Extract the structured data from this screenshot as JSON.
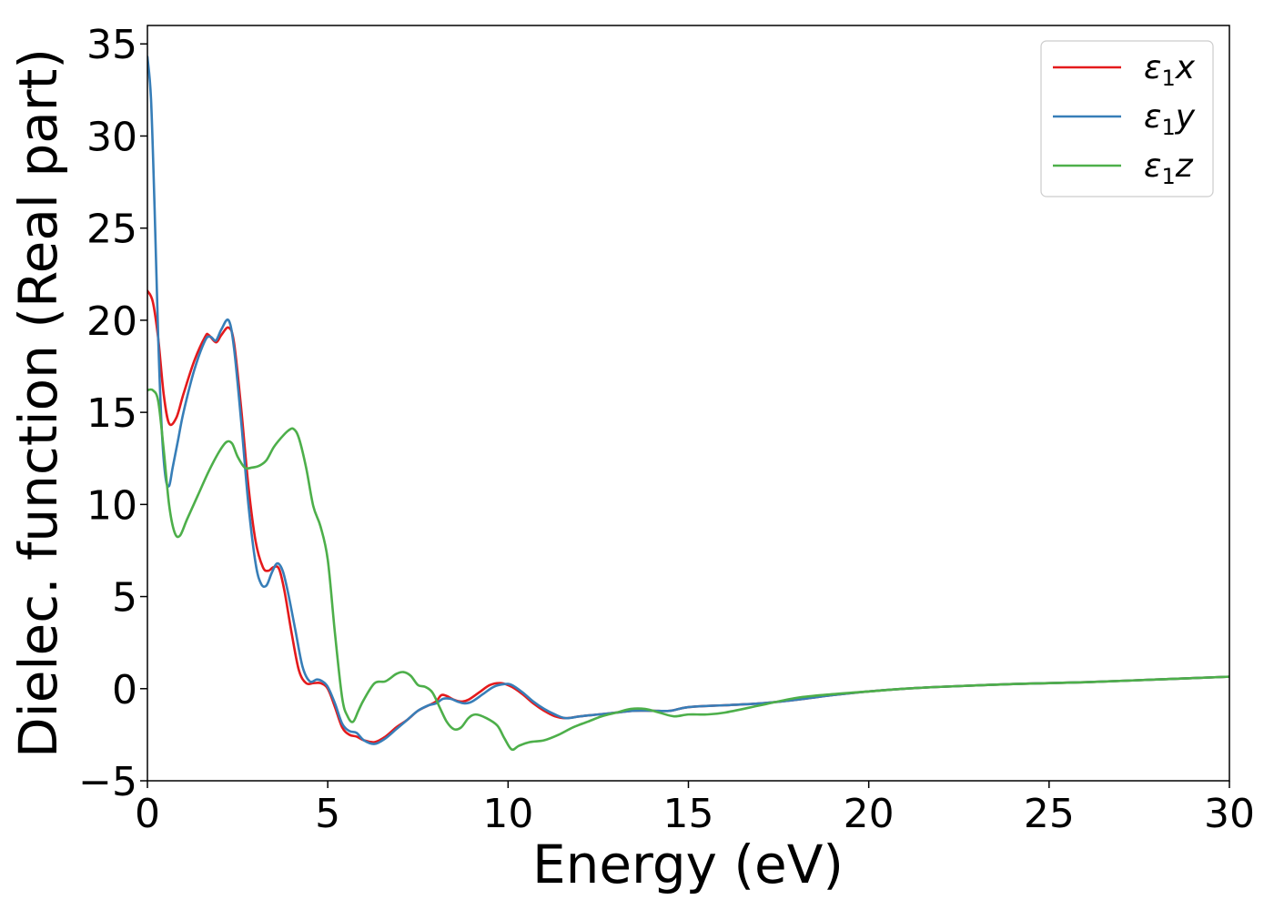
{
  "chart_data": {
    "type": "line",
    "title": "",
    "xlabel": "Energy (eV)",
    "ylabel": "Dielec. function (Real part)",
    "xlim": [
      0,
      30
    ],
    "ylim": [
      -5,
      36
    ],
    "xticks": [
      0,
      5,
      10,
      15,
      20,
      25,
      30
    ],
    "xtick_labels": [
      "0",
      "5",
      "10",
      "15",
      "20",
      "25",
      "30"
    ],
    "yticks": [
      -5,
      0,
      5,
      10,
      15,
      20,
      25,
      30,
      35
    ],
    "ytick_labels": [
      "−5",
      "0",
      "5",
      "10",
      "15",
      "20",
      "25",
      "30",
      "35"
    ],
    "grid": false,
    "legend_position": "top-right",
    "series": [
      {
        "name": "ε₁x",
        "legend_main": "ε",
        "legend_sub": "1",
        "legend_var": "x",
        "color": "#e41a1c",
        "x": [
          0,
          0.15,
          0.3,
          0.45,
          0.6,
          0.8,
          1.0,
          1.3,
          1.6,
          1.7,
          1.9,
          2.05,
          2.25,
          2.4,
          2.6,
          2.8,
          3.0,
          3.2,
          3.35,
          3.5,
          3.65,
          3.8,
          4.0,
          4.2,
          4.4,
          4.6,
          4.8,
          5.0,
          5.2,
          5.4,
          5.6,
          5.8,
          6.0,
          6.3,
          6.6,
          6.9,
          7.2,
          7.5,
          7.8,
          8.0,
          8.15,
          8.3,
          8.5,
          8.7,
          8.9,
          9.2,
          9.5,
          9.8,
          10.1,
          10.4,
          10.7,
          11.0,
          11.3,
          11.6,
          12.0,
          12.5,
          13.0,
          13.5,
          14.0,
          14.5,
          15.0,
          16.0,
          17.0,
          18.0,
          19.0,
          20.0,
          21.0,
          22.0,
          24.0,
          26.0,
          28.0,
          30.0
        ],
        "y": [
          21.6,
          21.0,
          19.0,
          16.0,
          14.4,
          14.7,
          16.0,
          17.8,
          19.1,
          19.2,
          18.8,
          19.2,
          19.6,
          18.8,
          15.2,
          11.0,
          8.0,
          6.6,
          6.4,
          6.6,
          6.5,
          5.3,
          3.0,
          1.0,
          0.3,
          0.3,
          0.3,
          0.0,
          -1.0,
          -2.1,
          -2.5,
          -2.6,
          -2.8,
          -2.9,
          -2.6,
          -2.1,
          -1.7,
          -1.2,
          -0.9,
          -0.7,
          -0.35,
          -0.4,
          -0.6,
          -0.7,
          -0.6,
          -0.2,
          0.2,
          0.3,
          0.1,
          -0.3,
          -0.8,
          -1.2,
          -1.5,
          -1.6,
          -1.5,
          -1.4,
          -1.3,
          -1.2,
          -1.2,
          -1.2,
          -1.0,
          -0.9,
          -0.8,
          -0.6,
          -0.35,
          -0.15,
          0.0,
          0.1,
          0.25,
          0.35,
          0.5,
          0.65
        ]
      },
      {
        "name": "ε₁y",
        "legend_main": "ε",
        "legend_sub": "1",
        "legend_var": "y",
        "color": "#377eb8",
        "x": [
          0,
          0.1,
          0.2,
          0.3,
          0.4,
          0.5,
          0.6,
          0.7,
          0.85,
          1.0,
          1.3,
          1.6,
          1.75,
          1.9,
          2.05,
          2.25,
          2.4,
          2.6,
          2.8,
          3.0,
          3.15,
          3.3,
          3.45,
          3.6,
          3.75,
          3.9,
          4.1,
          4.3,
          4.5,
          4.7,
          4.85,
          5.0,
          5.2,
          5.4,
          5.6,
          5.8,
          6.0,
          6.3,
          6.6,
          6.9,
          7.2,
          7.5,
          7.8,
          8.0,
          8.2,
          8.4,
          8.6,
          8.8,
          9.0,
          9.3,
          9.6,
          9.9,
          10.1,
          10.4,
          10.7,
          11.0,
          11.3,
          11.6,
          12.0,
          12.5,
          13.0,
          13.5,
          14.0,
          14.5,
          15.0,
          16.0,
          17.0,
          18.0,
          19.0,
          20.0,
          21.0,
          22.0,
          24.0,
          26.0,
          28.0,
          30.0
        ],
        "y": [
          34.3,
          32.0,
          26.0,
          19.0,
          14.0,
          11.5,
          11.0,
          12.0,
          13.5,
          15.0,
          17.3,
          18.9,
          19.1,
          18.9,
          19.5,
          20.0,
          18.5,
          14.5,
          10.0,
          6.8,
          5.7,
          5.6,
          6.3,
          6.8,
          6.4,
          5.2,
          3.2,
          1.2,
          0.4,
          0.5,
          0.4,
          0.1,
          -0.8,
          -1.9,
          -2.3,
          -2.4,
          -2.8,
          -3.0,
          -2.7,
          -2.2,
          -1.7,
          -1.2,
          -0.9,
          -0.8,
          -0.55,
          -0.55,
          -0.7,
          -0.8,
          -0.7,
          -0.3,
          0.1,
          0.25,
          0.2,
          -0.2,
          -0.7,
          -1.1,
          -1.4,
          -1.6,
          -1.5,
          -1.4,
          -1.3,
          -1.2,
          -1.2,
          -1.2,
          -1.0,
          -0.9,
          -0.8,
          -0.6,
          -0.35,
          -0.15,
          0.0,
          0.1,
          0.25,
          0.35,
          0.5,
          0.65
        ]
      },
      {
        "name": "ε₁z",
        "legend_main": "ε",
        "legend_sub": "1",
        "legend_var": "z",
        "color": "#4daf4a",
        "x": [
          0,
          0.15,
          0.3,
          0.45,
          0.6,
          0.75,
          0.9,
          1.1,
          1.4,
          1.7,
          2.0,
          2.2,
          2.35,
          2.5,
          2.7,
          2.9,
          3.1,
          3.3,
          3.5,
          3.7,
          3.9,
          4.05,
          4.2,
          4.4,
          4.6,
          4.8,
          5.0,
          5.2,
          5.4,
          5.55,
          5.7,
          5.85,
          6.0,
          6.3,
          6.6,
          6.9,
          7.1,
          7.3,
          7.5,
          7.7,
          7.9,
          8.1,
          8.3,
          8.5,
          8.7,
          8.9,
          9.1,
          9.4,
          9.7,
          9.9,
          10.1,
          10.3,
          10.6,
          11.0,
          11.4,
          11.8,
          12.2,
          12.6,
          13.0,
          13.4,
          13.8,
          14.2,
          14.6,
          15.0,
          15.5,
          16.0,
          17.0,
          18.0,
          19.0,
          20.0,
          21.0,
          22.0,
          24.0,
          26.0,
          28.0,
          30.0
        ],
        "y": [
          16.2,
          16.2,
          15.6,
          13.0,
          10.0,
          8.5,
          8.3,
          9.2,
          10.5,
          11.8,
          12.9,
          13.4,
          13.3,
          12.6,
          12.0,
          12.0,
          12.1,
          12.4,
          13.1,
          13.6,
          14.0,
          14.1,
          13.6,
          12.0,
          9.9,
          8.8,
          7.0,
          3.0,
          -0.5,
          -1.5,
          -1.8,
          -1.2,
          -0.6,
          0.3,
          0.4,
          0.8,
          0.9,
          0.7,
          0.2,
          0.1,
          -0.2,
          -1.0,
          -1.8,
          -2.2,
          -2.1,
          -1.6,
          -1.4,
          -1.6,
          -2.0,
          -2.7,
          -3.3,
          -3.1,
          -2.9,
          -2.8,
          -2.5,
          -2.1,
          -1.8,
          -1.5,
          -1.3,
          -1.1,
          -1.1,
          -1.3,
          -1.5,
          -1.4,
          -1.4,
          -1.3,
          -0.9,
          -0.5,
          -0.3,
          -0.15,
          0.0,
          0.1,
          0.25,
          0.35,
          0.5,
          0.65
        ]
      }
    ]
  }
}
